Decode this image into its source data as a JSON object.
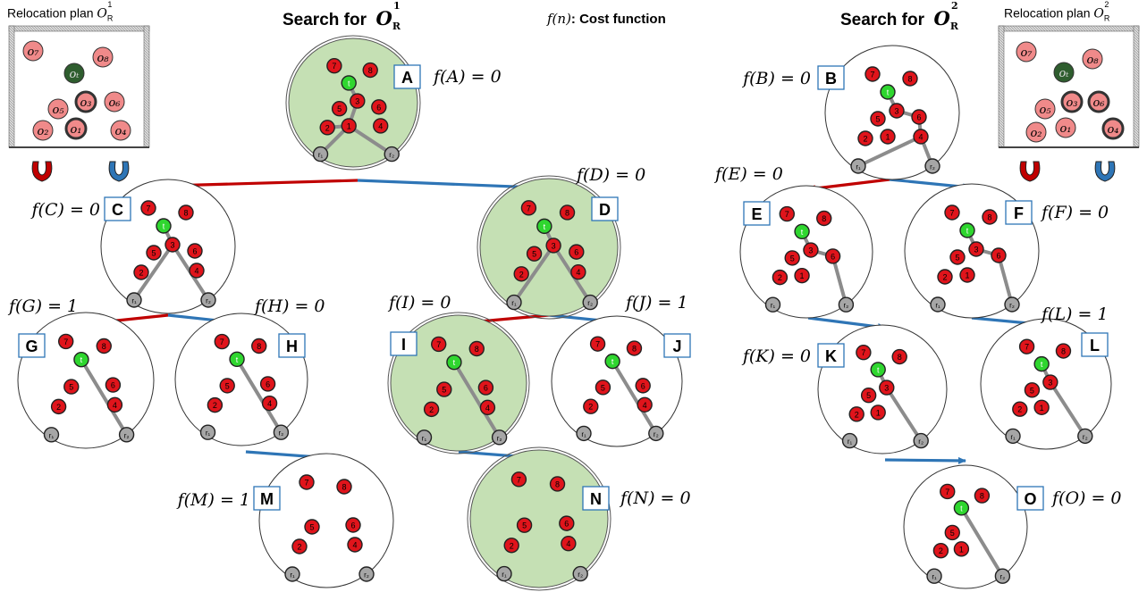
{
  "headers": {
    "left_prefix": "Search for",
    "right_prefix": "Search for",
    "left_goal": "O",
    "left_goal_sub": "R",
    "left_goal_sup": "1",
    "right_goal": "O",
    "right_goal_sub": "R",
    "right_goal_sup": "2",
    "cost_legend_fn": "f(n)",
    "cost_legend_text": ": Cost function"
  },
  "plans": {
    "left_title": "Relocation plan",
    "left_sym": "O",
    "left_sub": "R",
    "left_sup": "1",
    "right_title": "Relocation plan",
    "right_sym": "O",
    "right_sub": "R",
    "right_sup": "2",
    "objects": [
      "o7",
      "o8",
      "ot",
      "o3",
      "o6",
      "o5",
      "o2",
      "o1",
      "o4"
    ]
  },
  "colors": {
    "object_red": "#e0141b",
    "object_pink": "#f08a8a",
    "target_green": "#2fd62f",
    "target_dark": "#2e5d2e",
    "robot_gray": "#a6a6a6",
    "node_green": "#c5e0b4",
    "edge_gray": "#8c8c8c",
    "arrow_red": "#c00000",
    "arrow_blue": "#2e75b6",
    "label_border": "#2e75b6"
  },
  "nodes": [
    {
      "id": "A",
      "cost": "f(A) = 0",
      "objs": [
        "7",
        "8",
        "t",
        "3",
        "5",
        "6",
        "4",
        "2",
        "1",
        "r1",
        "r2"
      ],
      "highlight": true
    },
    {
      "id": "B",
      "cost": "f(B) = 0",
      "objs": [
        "7",
        "8",
        "t",
        "3",
        "5",
        "6",
        "4",
        "2",
        "1",
        "r1",
        "r2"
      ],
      "highlight": false
    },
    {
      "id": "C",
      "cost": "f(C) = 0",
      "objs": [
        "7",
        "8",
        "t",
        "3",
        "5",
        "6",
        "4",
        "2",
        "r1",
        "r2"
      ],
      "highlight": false
    },
    {
      "id": "D",
      "cost": "f(D) = 0",
      "objs": [
        "7",
        "8",
        "t",
        "3",
        "5",
        "6",
        "4",
        "2",
        "r1",
        "r2"
      ],
      "highlight": true
    },
    {
      "id": "E",
      "cost": "f(E) = 0",
      "objs": [
        "7",
        "8",
        "t",
        "3",
        "5",
        "6",
        "2",
        "1",
        "r1",
        "r2"
      ],
      "highlight": false
    },
    {
      "id": "F",
      "cost": "f(F) = 0",
      "objs": [
        "7",
        "8",
        "t",
        "3",
        "5",
        "6",
        "2",
        "1",
        "r1",
        "r2"
      ],
      "highlight": false
    },
    {
      "id": "G",
      "cost": "f(G) = 1",
      "objs": [
        "7",
        "8",
        "t",
        "5",
        "6",
        "4",
        "2",
        "r1",
        "r2"
      ],
      "highlight": false
    },
    {
      "id": "H",
      "cost": "f(H) = 0",
      "objs": [
        "7",
        "8",
        "t",
        "5",
        "6",
        "4",
        "2",
        "r1",
        "r2"
      ],
      "highlight": false
    },
    {
      "id": "I",
      "cost": "f(I) = 0",
      "objs": [
        "7",
        "8",
        "t",
        "5",
        "6",
        "4",
        "2",
        "r1",
        "r2"
      ],
      "highlight": true
    },
    {
      "id": "J",
      "cost": "f(J) = 1",
      "objs": [
        "7",
        "8",
        "t",
        "5",
        "6",
        "4",
        "2",
        "r1",
        "r2"
      ],
      "highlight": false
    },
    {
      "id": "K",
      "cost": "f(K) = 0",
      "objs": [
        "7",
        "8",
        "t",
        "3",
        "5",
        "2",
        "1",
        "r1",
        "r2"
      ],
      "highlight": false
    },
    {
      "id": "L",
      "cost": "f(L) = 1",
      "objs": [
        "7",
        "8",
        "t",
        "3",
        "5",
        "2",
        "1",
        "r1",
        "r2"
      ],
      "highlight": false
    },
    {
      "id": "M",
      "cost": "f(M) = 1",
      "objs": [
        "7",
        "8",
        "5",
        "6",
        "4",
        "2",
        "r1",
        "r2"
      ],
      "highlight": false
    },
    {
      "id": "N",
      "cost": "f(N) = 0",
      "objs": [
        "7",
        "8",
        "5",
        "6",
        "4",
        "2",
        "r1",
        "r2"
      ],
      "highlight": true
    },
    {
      "id": "O",
      "cost": "f(O) = 0",
      "objs": [
        "7",
        "8",
        "t",
        "5",
        "2",
        "1",
        "r1",
        "r2"
      ],
      "highlight": false
    }
  ]
}
